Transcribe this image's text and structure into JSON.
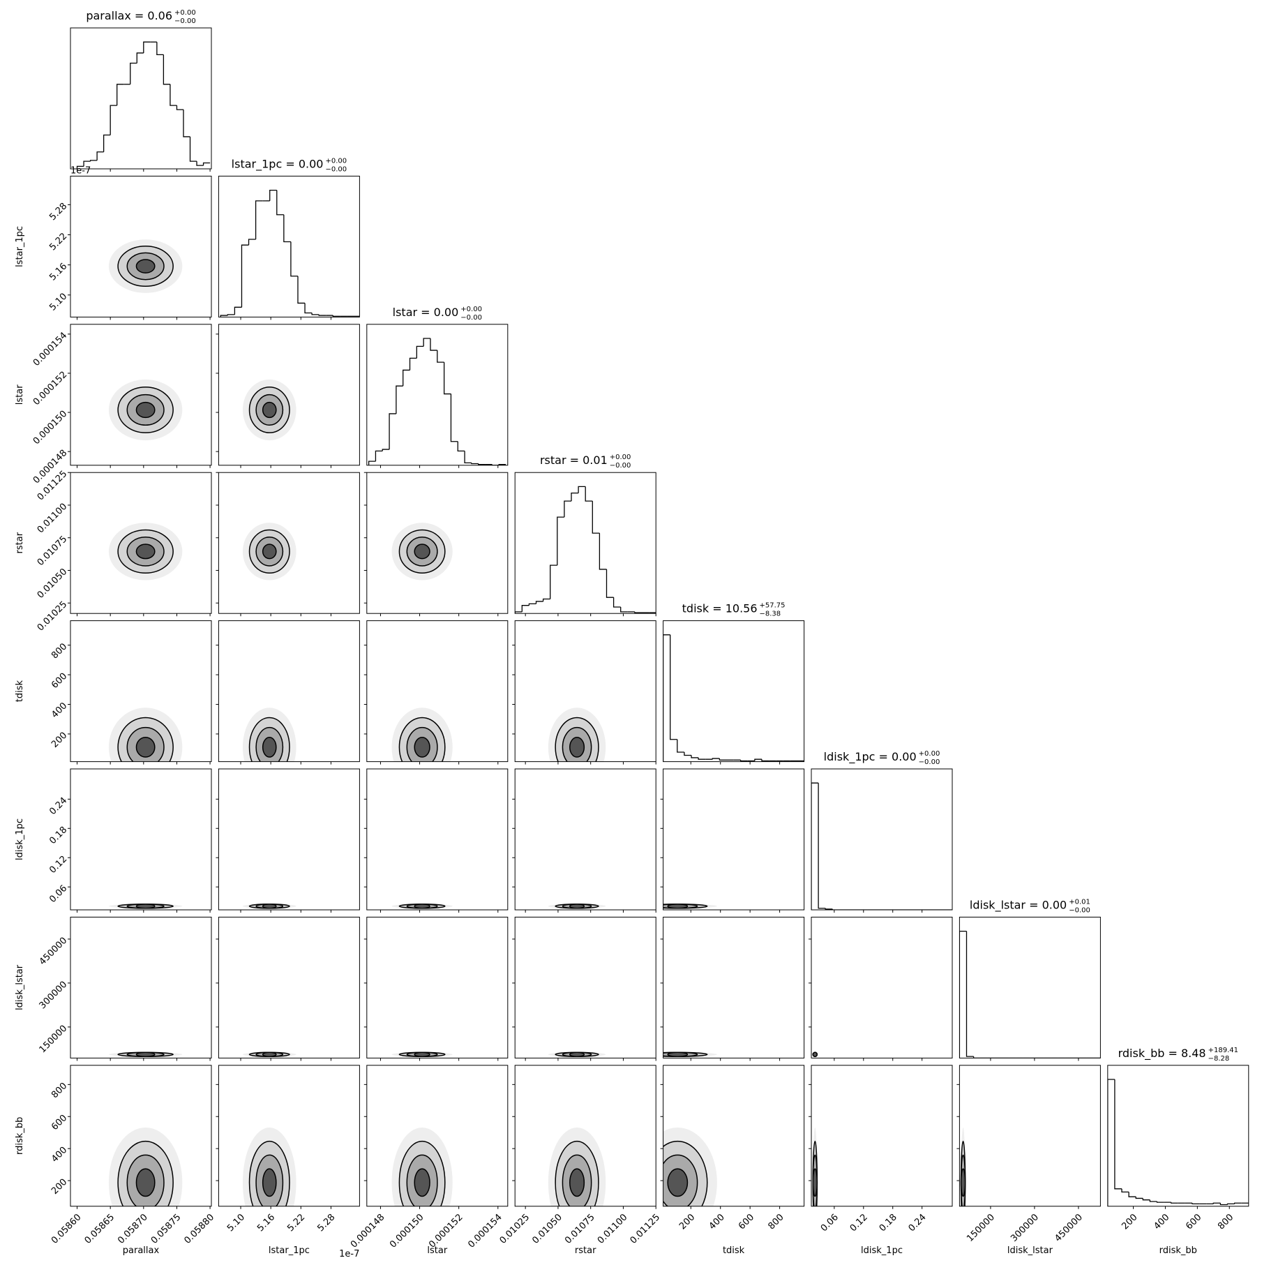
{
  "chart_data": {
    "type": "corner",
    "params": [
      {
        "name": "parallax",
        "title": "parallax = 0.06",
        "upper": "+0.00",
        "lower": "−0.00",
        "lim": [
          0.05859,
          0.058802
        ],
        "ticks": [
          {
            "value": 0.0586,
            "label": "0.05860"
          },
          0.05865,
          {
            "value": 0.0587,
            "label": "0.05870"
          },
          0.05875,
          {
            "value": 0.0588,
            "label": "0.05880"
          }
        ],
        "bins": [
          0.0586,
          0.05861,
          0.05862,
          0.05863,
          0.05864,
          0.05865,
          0.05866,
          0.05867,
          0.05868,
          0.05869,
          0.0587,
          0.05871,
          0.05872,
          0.05873,
          0.05874,
          0.05875,
          0.05876,
          0.05877,
          0.05878,
          0.05879,
          0.0588
        ],
        "counts": [
          3,
          9,
          10,
          20,
          40,
          75,
          100,
          100,
          125,
          137,
          150,
          150,
          135,
          100,
          75,
          70,
          38,
          9,
          4,
          7
        ]
      },
      {
        "name": "lstar_1pc",
        "title": "lstar_1pc = 0.00",
        "upper": "+0.00",
        "lower": "−0.00",
        "offset_text": "1e-7",
        "lim": [
          5.056,
          5.337
        ],
        "ticks": [
          {
            "value": 5.1,
            "label": "5.10"
          },
          5.16,
          5.22,
          5.28
        ],
        "bins": [
          5.06,
          5.074,
          5.088,
          5.102,
          5.116,
          5.13,
          5.144,
          5.158,
          5.172,
          5.186,
          5.2,
          5.214,
          5.228,
          5.242,
          5.256,
          5.27,
          5.284,
          5.298,
          5.312,
          5.326,
          5.34
        ],
        "counts": [
          2,
          3,
          12,
          88,
          95,
          142,
          142,
          155,
          125,
          92,
          50,
          17,
          5,
          3,
          2,
          2,
          1,
          1,
          1,
          1
        ]
      },
      {
        "name": "lstar",
        "title": "lstar = 0.00",
        "upper": "+0.00",
        "lower": "−0.00",
        "lim": [
          0.0001473,
          0.0001545
        ],
        "ticks": [
          0.000148,
          {
            "value": 0.00015,
            "label": "0.000150"
          },
          0.000152,
          0.000154
        ],
        "bins": [
          0.0001474,
          0.00014775,
          0.0001481,
          0.00014845,
          0.0001488,
          0.00014915,
          0.0001495,
          0.00014985,
          0.0001502,
          0.00015055,
          0.0001509,
          0.00015125,
          0.0001516,
          0.00015195,
          0.0001523,
          0.00015265,
          0.000153,
          0.00015335,
          0.0001537,
          0.00015405,
          0.0001544
        ],
        "counts": [
          5,
          18,
          20,
          65,
          100,
          120,
          135,
          150,
          160,
          145,
          130,
          90,
          30,
          18,
          3,
          2,
          1,
          1,
          0,
          1
        ]
      },
      {
        "name": "rstar",
        "title": "rstar = 0.01",
        "upper": "+0.00",
        "lower": "−0.00",
        "lim": [
          0.01017,
          0.01125
        ],
        "ticks": [
          0.01025,
          {
            "value": 0.0105,
            "label": "0.01050"
          },
          0.01075,
          {
            "value": 0.011,
            "label": "0.01100"
          },
          0.01125
        ],
        "bins": [
          0.01017,
          0.010224,
          0.010278,
          0.010332,
          0.010386,
          0.01044,
          0.010494,
          0.010548,
          0.010602,
          0.010656,
          0.01071,
          0.010764,
          0.010818,
          0.010872,
          0.010926,
          0.01098,
          0.011034,
          0.011088,
          0.011142,
          0.011196,
          0.01125
        ],
        "counts": [
          2,
          10,
          12,
          15,
          18,
          60,
          120,
          140,
          150,
          158,
          140,
          100,
          55,
          20,
          8,
          2,
          2,
          1,
          1,
          1
        ]
      },
      {
        "name": "tdisk",
        "title": "tdisk = 10.56",
        "upper": "+57.75",
        "lower": "−8.38",
        "lim": [
          13,
          965
        ],
        "ticks": [
          200,
          400,
          600,
          800
        ],
        "bins": [
          13,
          60.6,
          108.2,
          155.8,
          203.4,
          251,
          298.6,
          346.2,
          393.8,
          441.4,
          489,
          536.6,
          584.2,
          631.8,
          679.4,
          727,
          774.6,
          822.2,
          869.8,
          917.4,
          965
        ],
        "counts": [
          160,
          28,
          12,
          8,
          5,
          3,
          3,
          4,
          2,
          2,
          2,
          1,
          1,
          3,
          1,
          1,
          1,
          1,
          1,
          1
        ]
      },
      {
        "name": "ldisk_1pc",
        "title": "ldisk_1pc = 0.00",
        "upper": "+0.00",
        "lower": "−0.00",
        "lim": [
          0.013,
          0.302
        ],
        "ticks": [
          0.06,
          0.12,
          0.18,
          0.24
        ],
        "bins": [
          0.013,
          0.02745,
          0.0419,
          0.05635,
          0.0708,
          0.08525,
          0.0997,
          0.11415,
          0.1286,
          0.14305,
          0.1575,
          0.17195,
          0.1864,
          0.20085,
          0.2153,
          0.22975,
          0.2442,
          0.25865,
          0.2731,
          0.28755,
          0.302
        ],
        "counts": [
          160,
          2,
          1,
          0,
          0,
          0,
          0,
          0,
          0,
          0,
          0,
          0,
          0,
          0,
          0,
          0,
          0,
          0,
          0,
          0
        ]
      },
      {
        "name": "ldisk_lstar",
        "title": "ldisk_lstar = 0.00",
        "upper": "+0.01",
        "lower": "−0.00",
        "lim": [
          44000,
          525000
        ],
        "ticks": [
          150000,
          300000,
          450000
        ],
        "bins": [
          44000,
          68050,
          92100,
          116150,
          140200,
          164250,
          188300,
          212350,
          236400,
          260450,
          284500,
          308550,
          332600,
          356650,
          380700,
          404750,
          428800,
          452850,
          476900,
          500950,
          525000
        ],
        "counts": [
          160,
          2,
          0,
          0,
          0,
          0,
          0,
          0,
          0,
          0,
          0,
          0,
          0,
          0,
          0,
          0,
          0,
          0,
          0,
          0
        ]
      },
      {
        "name": "rdisk_bb",
        "title": "rdisk_bb = 8.48",
        "upper": "+189.41",
        "lower": "−8.28",
        "lim": [
          40,
          920
        ],
        "ticks": [
          200,
          400,
          600,
          800
        ],
        "bins": [
          40,
          84,
          128,
          172,
          216,
          260,
          304,
          348,
          392,
          436,
          480,
          524,
          568,
          612,
          656,
          700,
          744,
          788,
          832,
          876,
          920
        ],
        "counts": [
          160,
          22,
          18,
          12,
          10,
          8,
          6,
          5,
          5,
          4,
          4,
          4,
          3,
          3,
          3,
          4,
          2,
          3,
          4,
          4
        ]
      }
    ]
  }
}
